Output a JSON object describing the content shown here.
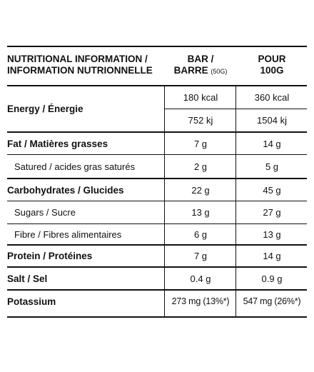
{
  "header": {
    "title_line1": "NUTRITIONAL INFORMATION /",
    "title_line2": "INFORMATION NUTRIONNELLE",
    "col_bar_line1": "BAR /",
    "col_bar_line2": "BARRE",
    "col_bar_unit": "(50G)",
    "col_pour_line1": "POUR",
    "col_pour_line2": "100G"
  },
  "rows": {
    "energy": {
      "label": "Energy / Énergie",
      "bar_kcal": "180 kcal",
      "pour_kcal": "360 kcal",
      "bar_kj": "752 kj",
      "pour_kj": "1504 kj"
    },
    "fat": {
      "label": "Fat / Matières grasses",
      "bar": "7 g",
      "pour": "14 g"
    },
    "saturated": {
      "label": "Satured / acides gras saturés",
      "bar": "2 g",
      "pour": "5 g"
    },
    "carbs": {
      "label": "Carbohydrates / Glucides",
      "bar": "22 g",
      "pour": "45 g"
    },
    "sugars": {
      "label": "Sugars / Sucre",
      "bar": "13 g",
      "pour": "27 g"
    },
    "fibre": {
      "label": "Fibre / Fibres alimentaires",
      "bar": "6 g",
      "pour": "13 g"
    },
    "protein": {
      "label": "Protein / Protéines",
      "bar": "7 g",
      "pour": "14 g"
    },
    "salt": {
      "label": "Salt / Sel",
      "bar": "0.4 g",
      "pour": "0.9 g"
    },
    "potassium": {
      "label": "Potassium",
      "bar": "273 mg (13%*)",
      "pour": "547 mg (26%*)"
    }
  }
}
